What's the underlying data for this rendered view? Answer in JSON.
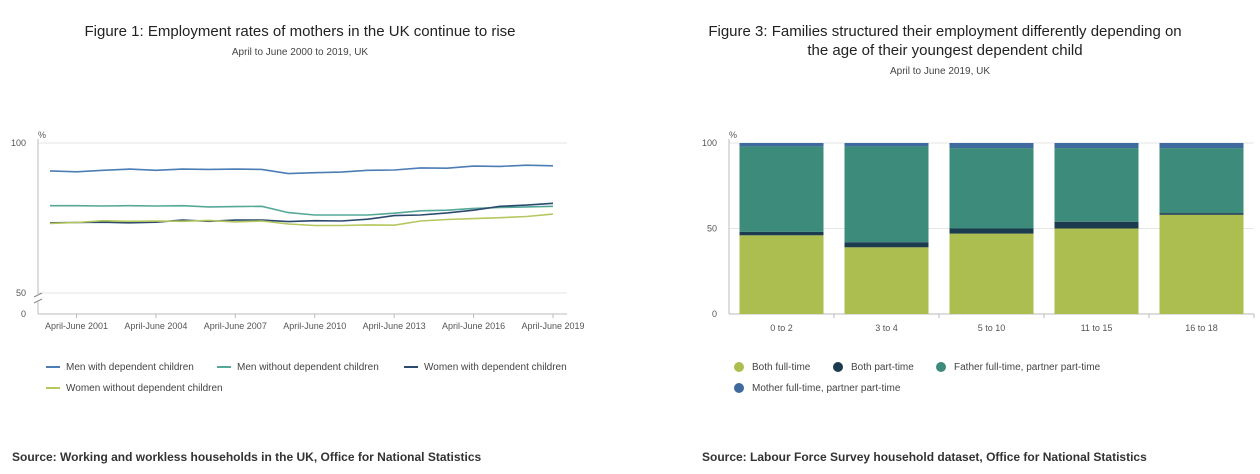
{
  "chart_data": [
    {
      "type": "line",
      "title": "Figure 1: Employment rates of mothers in the UK continue to rise",
      "subtitle": "April to June 2000 to 2019, UK",
      "ylabel": "%",
      "ylim": [
        0,
        100
      ],
      "axis_break": [
        0,
        50
      ],
      "y_ticks": [
        "100",
        "50",
        "0"
      ],
      "x": [
        2000,
        2001,
        2002,
        2003,
        2004,
        2005,
        2006,
        2007,
        2008,
        2009,
        2010,
        2011,
        2012,
        2013,
        2014,
        2015,
        2016,
        2017,
        2018,
        2019
      ],
      "x_tick_labels": [
        "April-June 2001",
        "April-June 2004",
        "April-June 2007",
        "April-June 2010",
        "April-June 2013",
        "April-June 2016",
        "April-June 2019"
      ],
      "series": [
        {
          "name": "Men with dependent children",
          "color": "#4d7db5",
          "values": [
            90.7,
            90.4,
            90.9,
            91.3,
            90.9,
            91.3,
            91.2,
            91.3,
            91.2,
            89.8,
            90.1,
            90.3,
            90.9,
            91.0,
            91.7,
            91.6,
            92.3,
            92.2,
            92.6,
            92.4
          ]
        },
        {
          "name": "Men without dependent children",
          "color": "#55a898",
          "values": [
            79.1,
            79.1,
            79.0,
            79.1,
            79.0,
            79.1,
            78.7,
            78.8,
            78.9,
            76.8,
            76.0,
            76.0,
            76.0,
            76.6,
            77.4,
            77.6,
            78.2,
            78.5,
            78.7,
            78.9
          ]
        },
        {
          "name": "Women with dependent children",
          "color": "#2c4a6e",
          "values": [
            73.4,
            73.5,
            73.6,
            73.4,
            73.6,
            74.3,
            73.9,
            74.3,
            74.3,
            73.8,
            74.1,
            74.0,
            74.6,
            75.8,
            76.0,
            76.7,
            77.6,
            78.9,
            79.3,
            79.9
          ]
        },
        {
          "name": "Women without dependent children",
          "color": "#b5c85f",
          "values": [
            73.2,
            73.5,
            74.1,
            73.9,
            74.0,
            73.9,
            74.2,
            73.7,
            74.0,
            73.0,
            72.5,
            72.5,
            72.7,
            72.6,
            74.0,
            74.5,
            74.8,
            75.1,
            75.5,
            76.3
          ]
        }
      ],
      "legend_position": "bottom",
      "source": "Source: Working and workless households in the UK, Office for National Statistics"
    },
    {
      "type": "bar",
      "stacked": true,
      "title": "Figure 3: Families structured their employment differently depending on the age of their youngest dependent child",
      "title_lines": [
        "Figure 3: Families structured their employment differently depending on",
        "the age of their youngest dependent child"
      ],
      "subtitle": "April to June 2019, UK",
      "ylabel": "%",
      "ylim": [
        0,
        100
      ],
      "y_ticks": [
        "100",
        "50",
        "0"
      ],
      "categories": [
        "0 to 2",
        "3 to 4",
        "5 to 10",
        "11 to 15",
        "16 to 18"
      ],
      "series": [
        {
          "name": "Both full-time",
          "color": "#adbe51",
          "values": [
            46,
            39,
            47,
            50,
            58
          ]
        },
        {
          "name": "Both part-time",
          "color": "#1d3b4f",
          "values": [
            2,
            3,
            3,
            4,
            1
          ]
        },
        {
          "name": "Father full-time, partner part-time",
          "color": "#3d8b7a",
          "values": [
            50,
            56,
            47,
            43,
            38
          ]
        },
        {
          "name": "Mother full-time, partner part-time",
          "color": "#3e6a9e",
          "values": [
            2,
            2,
            3,
            3,
            3
          ]
        }
      ],
      "legend_position": "bottom",
      "source": "Source: Labour Force Survey household dataset, Office for National Statistics"
    }
  ]
}
